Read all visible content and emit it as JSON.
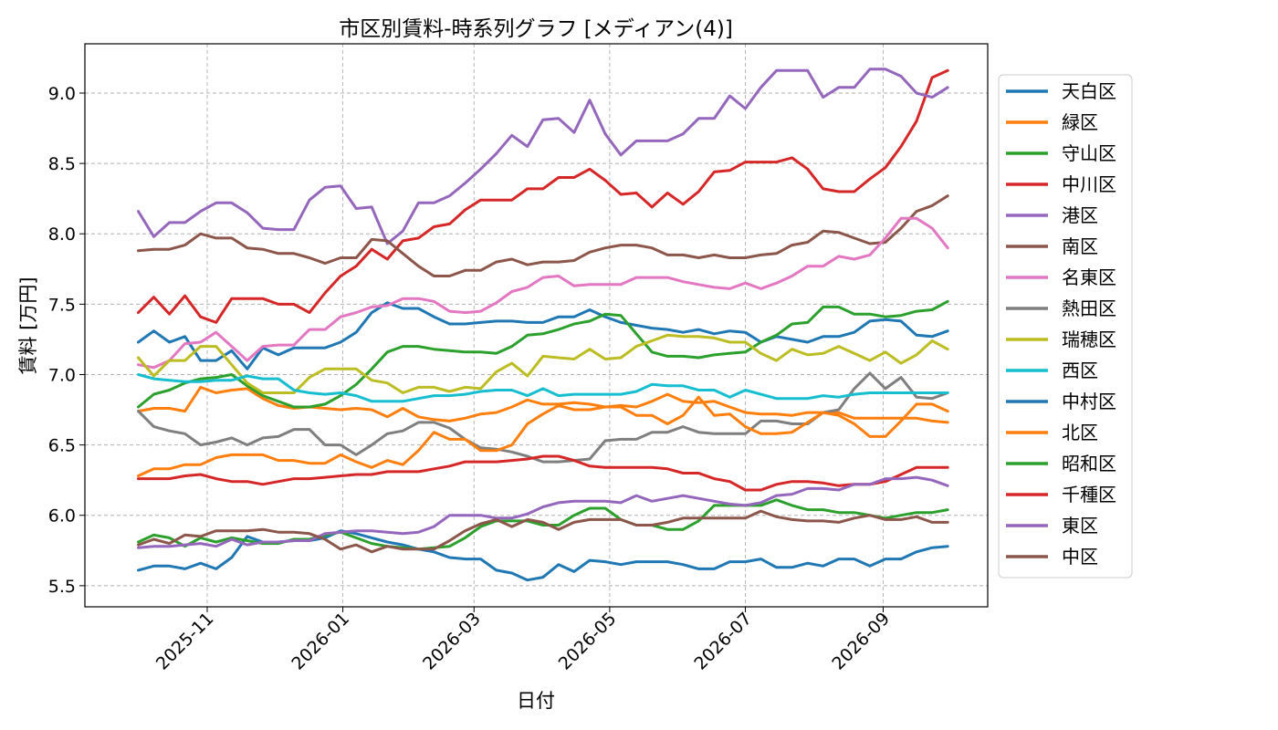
{
  "chart_data": {
    "type": "line",
    "title": "市区別賃料-時系列グラフ [メディアン(4)]",
    "xlabel": "日付",
    "ylabel": "賃料 [万円]",
    "x_start": "2025-10-01",
    "x_step_days": 7,
    "x_range": [
      "2025-09-07",
      "2026-10-18"
    ],
    "ylim": [
      5.35,
      9.35
    ],
    "y_ticks": [
      "5.5",
      "6.0",
      "6.5",
      "7.0",
      "7.5",
      "8.0",
      "8.5",
      "9.0"
    ],
    "x_ticks": [
      {
        "date": "2025-11-01",
        "label": "2025-11"
      },
      {
        "date": "2026-01-01",
        "label": "2026-01"
      },
      {
        "date": "2026-03-01",
        "label": "2026-03"
      },
      {
        "date": "2026-05-01",
        "label": "2026-05"
      },
      {
        "date": "2026-07-01",
        "label": "2026-07"
      },
      {
        "date": "2026-09-01",
        "label": "2026-09"
      }
    ],
    "grid": true,
    "legend_position": "right",
    "series": [
      {
        "name": "天白区",
        "color": "#1f77b4",
        "values": [
          7.23,
          7.31,
          7.23,
          7.27,
          7.1,
          7.1,
          7.17,
          7.04,
          7.19,
          7.14,
          7.19,
          7.19,
          7.19,
          7.23,
          7.3,
          7.44,
          7.51,
          7.47,
          7.47,
          7.41,
          7.36,
          7.36,
          7.37,
          7.38,
          7.38,
          7.37,
          7.37,
          7.41,
          7.41,
          7.46,
          7.41,
          7.37,
          7.35,
          7.33,
          7.32,
          7.3,
          7.32,
          7.29,
          7.31,
          7.3,
          7.23,
          7.27,
          7.25,
          7.23,
          7.27,
          7.27,
          7.3,
          7.38,
          7.39,
          7.38,
          7.28,
          7.27,
          7.31
        ]
      },
      {
        "name": "緑区",
        "color": "#ff7f0e",
        "values": [
          6.74,
          6.76,
          6.76,
          6.74,
          6.91,
          6.87,
          6.89,
          6.9,
          6.83,
          6.78,
          6.76,
          6.77,
          6.76,
          6.75,
          6.76,
          6.75,
          6.7,
          6.76,
          6.7,
          6.68,
          6.67,
          6.69,
          6.72,
          6.73,
          6.77,
          6.82,
          6.79,
          6.79,
          6.8,
          6.79,
          6.77,
          6.78,
          6.77,
          6.81,
          6.86,
          6.81,
          6.8,
          6.81,
          6.77,
          6.73,
          6.72,
          6.72,
          6.71,
          6.73,
          6.73,
          6.73,
          6.69,
          6.69,
          6.69,
          6.69,
          6.69,
          6.67,
          6.66
        ]
      },
      {
        "name": "守山区",
        "color": "#2ca02c",
        "values": [
          6.77,
          6.86,
          6.89,
          6.94,
          6.97,
          6.98,
          7.0,
          6.92,
          6.85,
          6.81,
          6.77,
          6.77,
          6.79,
          6.85,
          6.93,
          7.04,
          7.16,
          7.2,
          7.2,
          7.18,
          7.17,
          7.16,
          7.16,
          7.15,
          7.2,
          7.28,
          7.29,
          7.32,
          7.36,
          7.38,
          7.43,
          7.42,
          7.29,
          7.16,
          7.13,
          7.13,
          7.12,
          7.14,
          7.15,
          7.16,
          7.23,
          7.28,
          7.36,
          7.37,
          7.48,
          7.48,
          7.43,
          7.43,
          7.41,
          7.42,
          7.45,
          7.46,
          7.52
        ]
      },
      {
        "name": "中川区",
        "color": "#d62728",
        "values": [
          7.44,
          7.55,
          7.43,
          7.56,
          7.41,
          7.37,
          7.54,
          7.54,
          7.54,
          7.5,
          7.5,
          7.44,
          7.58,
          7.7,
          7.77,
          7.89,
          7.82,
          7.95,
          7.97,
          8.05,
          8.07,
          8.17,
          8.24,
          8.24,
          8.24,
          8.32,
          8.32,
          8.4,
          8.4,
          8.46,
          8.38,
          8.28,
          8.29,
          8.19,
          8.29,
          8.21,
          8.3,
          8.44,
          8.45,
          8.51,
          8.51,
          8.51,
          8.54,
          8.46,
          8.32,
          8.3,
          8.3,
          8.39,
          8.47,
          8.62,
          8.8,
          9.11,
          9.16
        ]
      },
      {
        "name": "港区",
        "color": "#9467bd",
        "values": [
          8.16,
          7.98,
          8.08,
          8.08,
          8.16,
          8.22,
          8.22,
          8.15,
          8.04,
          8.03,
          8.03,
          8.24,
          8.33,
          8.34,
          8.18,
          8.19,
          7.93,
          8.02,
          8.22,
          8.22,
          8.27,
          8.36,
          8.46,
          8.57,
          8.7,
          8.62,
          8.81,
          8.82,
          8.72,
          8.95,
          8.71,
          8.56,
          8.66,
          8.66,
          8.66,
          8.71,
          8.82,
          8.82,
          8.98,
          8.89,
          9.04,
          9.16,
          9.16,
          9.16,
          8.97,
          9.04,
          9.04,
          9.17,
          9.17,
          9.12,
          9.0,
          8.97,
          9.04
        ]
      },
      {
        "name": "南区",
        "color": "#8c564b",
        "values": [
          7.88,
          7.89,
          7.89,
          7.92,
          8.0,
          7.97,
          7.97,
          7.9,
          7.89,
          7.86,
          7.86,
          7.83,
          7.79,
          7.83,
          7.83,
          7.96,
          7.95,
          7.86,
          7.77,
          7.7,
          7.7,
          7.74,
          7.74,
          7.8,
          7.82,
          7.78,
          7.8,
          7.8,
          7.81,
          7.87,
          7.9,
          7.92,
          7.92,
          7.9,
          7.85,
          7.85,
          7.83,
          7.85,
          7.83,
          7.83,
          7.85,
          7.86,
          7.92,
          7.94,
          8.02,
          8.01,
          7.97,
          7.93,
          7.94,
          8.04,
          8.16,
          8.2,
          8.27
        ]
      },
      {
        "name": "名東区",
        "color": "#e377c2",
        "values": [
          7.07,
          7.05,
          7.1,
          7.22,
          7.23,
          7.3,
          7.2,
          7.1,
          7.2,
          7.21,
          7.21,
          7.32,
          7.32,
          7.41,
          7.44,
          7.48,
          7.49,
          7.54,
          7.54,
          7.52,
          7.45,
          7.44,
          7.45,
          7.51,
          7.59,
          7.62,
          7.69,
          7.7,
          7.63,
          7.64,
          7.64,
          7.64,
          7.69,
          7.69,
          7.69,
          7.66,
          7.64,
          7.62,
          7.61,
          7.65,
          7.61,
          7.65,
          7.7,
          7.77,
          7.77,
          7.84,
          7.82,
          7.85,
          7.97,
          8.11,
          8.11,
          8.04,
          7.9
        ]
      },
      {
        "name": "熱田区",
        "color": "#7f7f7f",
        "values": [
          6.74,
          6.63,
          6.6,
          6.58,
          6.5,
          6.52,
          6.55,
          6.5,
          6.55,
          6.56,
          6.61,
          6.61,
          6.5,
          6.5,
          6.43,
          6.5,
          6.58,
          6.6,
          6.66,
          6.66,
          6.62,
          6.54,
          6.48,
          6.47,
          6.45,
          6.42,
          6.38,
          6.38,
          6.39,
          6.4,
          6.53,
          6.54,
          6.54,
          6.59,
          6.59,
          6.63,
          6.59,
          6.58,
          6.58,
          6.58,
          6.67,
          6.67,
          6.65,
          6.65,
          6.73,
          6.75,
          6.9,
          7.01,
          6.9,
          6.98,
          6.84,
          6.83,
          6.87
        ]
      },
      {
        "name": "瑞穂区",
        "color": "#bcbd22",
        "values": [
          7.12,
          6.99,
          7.1,
          7.1,
          7.2,
          7.2,
          7.07,
          6.94,
          6.87,
          6.87,
          6.87,
          6.98,
          7.04,
          7.04,
          7.04,
          6.96,
          6.94,
          6.87,
          6.91,
          6.91,
          6.88,
          6.91,
          6.9,
          7.02,
          7.08,
          6.99,
          7.13,
          7.12,
          7.11,
          7.18,
          7.11,
          7.12,
          7.2,
          7.24,
          7.28,
          7.27,
          7.27,
          7.26,
          7.23,
          7.23,
          7.15,
          7.1,
          7.18,
          7.14,
          7.15,
          7.2,
          7.15,
          7.1,
          7.16,
          7.08,
          7.14,
          7.24,
          7.18
        ]
      },
      {
        "name": "西区",
        "color": "#17becf",
        "values": [
          7.0,
          6.97,
          6.96,
          6.95,
          6.95,
          6.96,
          6.96,
          6.99,
          6.97,
          6.97,
          6.89,
          6.87,
          6.86,
          6.87,
          6.85,
          6.81,
          6.81,
          6.81,
          6.83,
          6.85,
          6.85,
          6.86,
          6.88,
          6.89,
          6.89,
          6.85,
          6.9,
          6.85,
          6.86,
          6.86,
          6.86,
          6.86,
          6.88,
          6.93,
          6.92,
          6.92,
          6.89,
          6.89,
          6.84,
          6.89,
          6.86,
          6.83,
          6.83,
          6.83,
          6.85,
          6.84,
          6.86,
          6.87,
          6.87,
          6.87,
          6.87,
          6.87,
          6.87
        ]
      },
      {
        "name": "中村区",
        "color": "#1f77b4",
        "values": [
          5.61,
          5.64,
          5.64,
          5.62,
          5.66,
          5.62,
          5.7,
          5.85,
          5.81,
          5.81,
          5.82,
          5.82,
          5.84,
          5.89,
          5.87,
          5.84,
          5.81,
          5.79,
          5.76,
          5.74,
          5.7,
          5.69,
          5.69,
          5.61,
          5.59,
          5.54,
          5.56,
          5.65,
          5.6,
          5.68,
          5.67,
          5.65,
          5.67,
          5.67,
          5.67,
          5.65,
          5.62,
          5.62,
          5.67,
          5.67,
          5.69,
          5.63,
          5.63,
          5.66,
          5.64,
          5.69,
          5.69,
          5.64,
          5.69,
          5.69,
          5.74,
          5.77,
          5.78
        ]
      },
      {
        "name": "北区",
        "color": "#ff7f0e",
        "values": [
          6.28,
          6.33,
          6.33,
          6.36,
          6.36,
          6.41,
          6.43,
          6.43,
          6.43,
          6.39,
          6.39,
          6.37,
          6.37,
          6.43,
          6.38,
          6.34,
          6.39,
          6.36,
          6.46,
          6.59,
          6.54,
          6.54,
          6.46,
          6.46,
          6.5,
          6.65,
          6.72,
          6.78,
          6.75,
          6.75,
          6.77,
          6.77,
          6.71,
          6.71,
          6.65,
          6.71,
          6.84,
          6.71,
          6.72,
          6.63,
          6.58,
          6.58,
          6.59,
          6.66,
          6.73,
          6.71,
          6.65,
          6.56,
          6.56,
          6.67,
          6.79,
          6.79,
          6.74
        ]
      },
      {
        "name": "昭和区",
        "color": "#2ca02c",
        "values": [
          5.81,
          5.86,
          5.84,
          5.78,
          5.84,
          5.81,
          5.84,
          5.82,
          5.8,
          5.8,
          5.83,
          5.83,
          5.86,
          5.88,
          5.84,
          5.8,
          5.78,
          5.77,
          5.76,
          5.77,
          5.78,
          5.84,
          5.92,
          5.96,
          5.96,
          5.96,
          5.93,
          5.93,
          6.0,
          6.05,
          6.05,
          5.97,
          5.93,
          5.93,
          5.9,
          5.9,
          5.96,
          6.07,
          6.07,
          6.07,
          6.07,
          6.11,
          6.07,
          6.04,
          6.04,
          6.02,
          6.02,
          6.0,
          5.98,
          6.0,
          6.02,
          6.02,
          6.04
        ]
      },
      {
        "name": "千種区",
        "color": "#d62728",
        "values": [
          6.26,
          6.26,
          6.26,
          6.28,
          6.29,
          6.26,
          6.24,
          6.24,
          6.22,
          6.24,
          6.26,
          6.26,
          6.27,
          6.28,
          6.29,
          6.29,
          6.31,
          6.31,
          6.31,
          6.33,
          6.35,
          6.38,
          6.38,
          6.38,
          6.39,
          6.4,
          6.42,
          6.42,
          6.39,
          6.35,
          6.34,
          6.34,
          6.34,
          6.34,
          6.33,
          6.3,
          6.3,
          6.26,
          6.24,
          6.18,
          6.18,
          6.22,
          6.24,
          6.24,
          6.23,
          6.21,
          6.22,
          6.22,
          6.24,
          6.29,
          6.34,
          6.34,
          6.34
        ]
      },
      {
        "name": "東区",
        "color": "#9467bd",
        "values": [
          5.77,
          5.78,
          5.78,
          5.79,
          5.8,
          5.78,
          5.83,
          5.79,
          5.81,
          5.81,
          5.82,
          5.82,
          5.87,
          5.88,
          5.89,
          5.89,
          5.88,
          5.87,
          5.88,
          5.92,
          6.0,
          6.0,
          6.0,
          5.98,
          5.98,
          6.01,
          6.06,
          6.09,
          6.1,
          6.1,
          6.1,
          6.09,
          6.14,
          6.1,
          6.12,
          6.14,
          6.12,
          6.1,
          6.08,
          6.07,
          6.09,
          6.14,
          6.15,
          6.19,
          6.19,
          6.18,
          6.22,
          6.22,
          6.26,
          6.26,
          6.27,
          6.25,
          6.21
        ]
      },
      {
        "name": "中区",
        "color": "#8c564b",
        "values": [
          5.79,
          5.83,
          5.8,
          5.86,
          5.85,
          5.89,
          5.89,
          5.89,
          5.9,
          5.88,
          5.88,
          5.87,
          5.83,
          5.76,
          5.79,
          5.74,
          5.78,
          5.76,
          5.76,
          5.76,
          5.82,
          5.89,
          5.94,
          5.97,
          5.92,
          5.97,
          5.95,
          5.9,
          5.95,
          5.97,
          5.97,
          5.97,
          5.93,
          5.93,
          5.95,
          5.98,
          5.98,
          5.98,
          5.98,
          5.98,
          6.03,
          5.99,
          5.97,
          5.96,
          5.96,
          5.95,
          5.98,
          6.0,
          5.97,
          5.97,
          5.99,
          5.95,
          5.95
        ]
      }
    ]
  }
}
